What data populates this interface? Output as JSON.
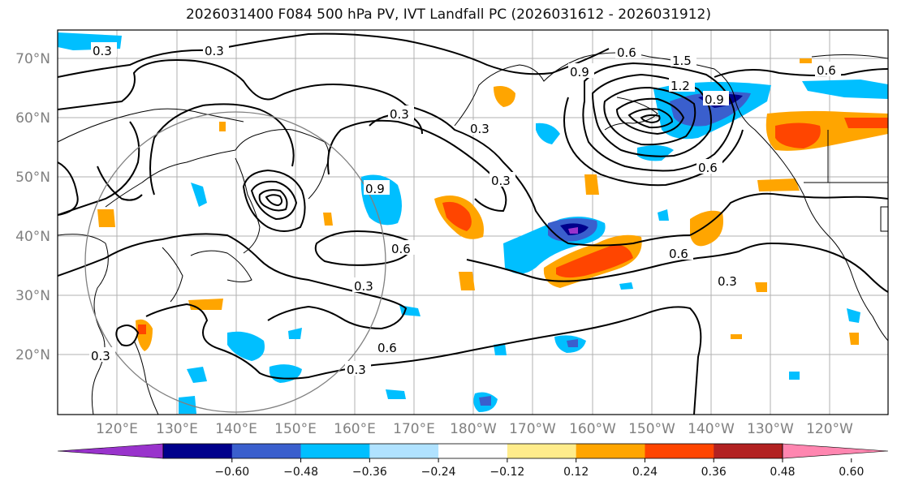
{
  "title": "2026031400 F084 500 hPa PV, IVT Landfall PC (2026031612 - 2026031912)",
  "lat_labels": [
    "70°N",
    "60°N",
    "50°N",
    "40°N",
    "30°N",
    "20°N"
  ],
  "lon_labels": [
    "120°E",
    "130°E",
    "140°E",
    "150°E",
    "160°E",
    "170°E",
    "180°W",
    "170°W",
    "160°W",
    "150°W",
    "140°W",
    "130°W",
    "120°W"
  ],
  "contour_labels": [
    "0.3",
    "0.6",
    "0.9",
    "1.2",
    "1.5"
  ],
  "colorbar": {
    "colors": [
      "#9933cc",
      "#00008b",
      "#3a5fcd",
      "#00bfff",
      "#b0e2ff",
      "#ffffff",
      "#ffec8b",
      "#ffa500",
      "#ff4500",
      "#b22222",
      "#ff86b0"
    ],
    "tick_labels": [
      "−0.60",
      "−0.48",
      "−0.36",
      "−0.24",
      "−0.12",
      "0.12",
      "0.24",
      "0.36",
      "0.48",
      "0.60"
    ]
  }
}
